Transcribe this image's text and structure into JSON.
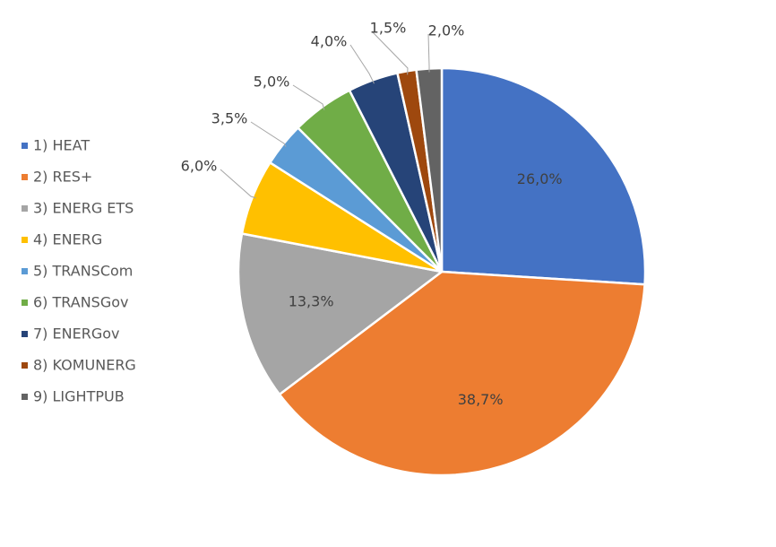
{
  "chart_data": {
    "type": "pie",
    "title": "",
    "legend_position": "left",
    "start_angle_deg": 0,
    "direction": "clockwise",
    "slices": [
      {
        "label": "1) HEAT",
        "value": 26.0,
        "display": "26,0%",
        "color": "#4472C4",
        "label_placement": "inside"
      },
      {
        "label": "2) RES+",
        "value": 38.7,
        "display": "38,7%",
        "color": "#ED7D31",
        "label_placement": "inside"
      },
      {
        "label": "3) ENERG ETS",
        "value": 13.3,
        "display": "13,3%",
        "color": "#A5A5A5",
        "label_placement": "inside"
      },
      {
        "label": "4) ENERG",
        "value": 6.0,
        "display": "6,0%",
        "color": "#FFC000",
        "label_placement": "outside"
      },
      {
        "label": "5) TRANSCom",
        "value": 3.5,
        "display": "3,5%",
        "color": "#5B9BD5",
        "label_placement": "outside"
      },
      {
        "label": "6) TRANSGov",
        "value": 5.0,
        "display": "5,0%",
        "color": "#70AD47",
        "label_placement": "outside"
      },
      {
        "label": "7) ENERGov",
        "value": 4.0,
        "display": "4,0%",
        "color": "#264478",
        "label_placement": "outside"
      },
      {
        "label": "8) KOMUNERG",
        "value": 1.5,
        "display": "1,5%",
        "color": "#9E480E",
        "label_placement": "outside"
      },
      {
        "label": "9) LIGHTPUB",
        "value": 2.0,
        "display": "2,0%",
        "color": "#636363",
        "label_placement": "outside"
      }
    ]
  }
}
